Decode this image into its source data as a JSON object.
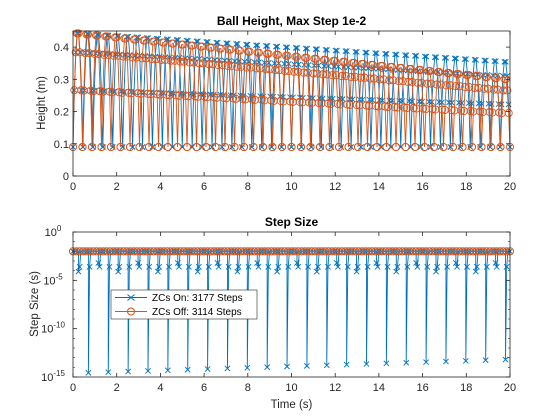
{
  "chart_data": [
    {
      "type": "line",
      "title": "Ball Height, Max Step 1e-2",
      "xlabel": "",
      "ylabel": "Height (m)",
      "xlim": [
        0,
        20
      ],
      "ylim": [
        0,
        0.45
      ],
      "xticks": [
        0,
        2,
        4,
        6,
        8,
        10,
        12,
        14,
        16,
        18,
        20
      ],
      "yticks": [
        0,
        0.1,
        0.2,
        0.3,
        0.4
      ],
      "ytick_labels": [
        "0",
        "0.1",
        "0.2",
        "0.3",
        "0.4"
      ],
      "grid": false,
      "series": [
        {
          "legend_key": "zc_on",
          "color": "#0072BD",
          "marker": "x",
          "bounces": 44,
          "peak_start": 0.45,
          "peak_end": 0.36,
          "valley": 0.09
        },
        {
          "legend_key": "zc_off",
          "color": "#D95319",
          "marker": "o",
          "bounces": 46,
          "peak_start": 0.45,
          "peak_end": 0.305,
          "valley": 0.09
        }
      ]
    },
    {
      "type": "line",
      "title": "Step Size",
      "xlabel": "Time (s)",
      "ylabel": "Step Size (s)",
      "xlim": [
        0,
        20
      ],
      "ylim_log10": [
        -15,
        0
      ],
      "yscale": "log",
      "xticks": [
        0,
        2,
        4,
        6,
        8,
        10,
        12,
        14,
        16,
        18,
        20
      ],
      "yticks_exp": [
        -15,
        -10,
        -5,
        0
      ],
      "grid": false,
      "legend_position": "center-left",
      "series": [
        {
          "name": "ZCs On: 3177 Steps",
          "color": "#0072BD",
          "marker": "x",
          "max_step_exp": -2,
          "dips_exp_start": -14.6,
          "dips_exp_end": -13.2
        },
        {
          "name": "ZCs Off: 3114 Steps",
          "color": "#D95319",
          "marker": "o",
          "max_step_exp": -2
        }
      ]
    }
  ]
}
